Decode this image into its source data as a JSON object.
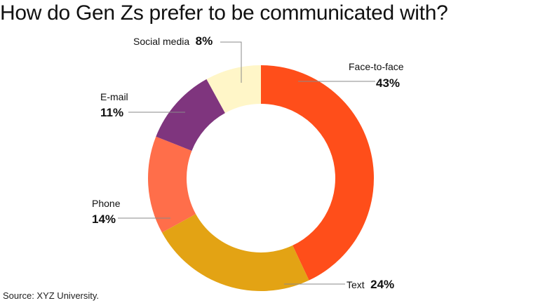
{
  "chart_data": {
    "type": "pie",
    "variant": "donut",
    "title": "How do Gen Zs prefer to be communicated with?",
    "source": "Source: XYZ University.",
    "unit": "%",
    "categories": [
      "Face-to-face",
      "Text",
      "Phone",
      "E-mail",
      "Social media"
    ],
    "values": [
      43,
      24,
      14,
      11,
      8
    ],
    "value_labels": [
      "43%",
      "24%",
      "14%",
      "11%",
      "8%"
    ],
    "colors": [
      "#FF4E1A",
      "#E3A314",
      "#FF6E4A",
      "#7F357E",
      "#FFF6C8"
    ]
  }
}
